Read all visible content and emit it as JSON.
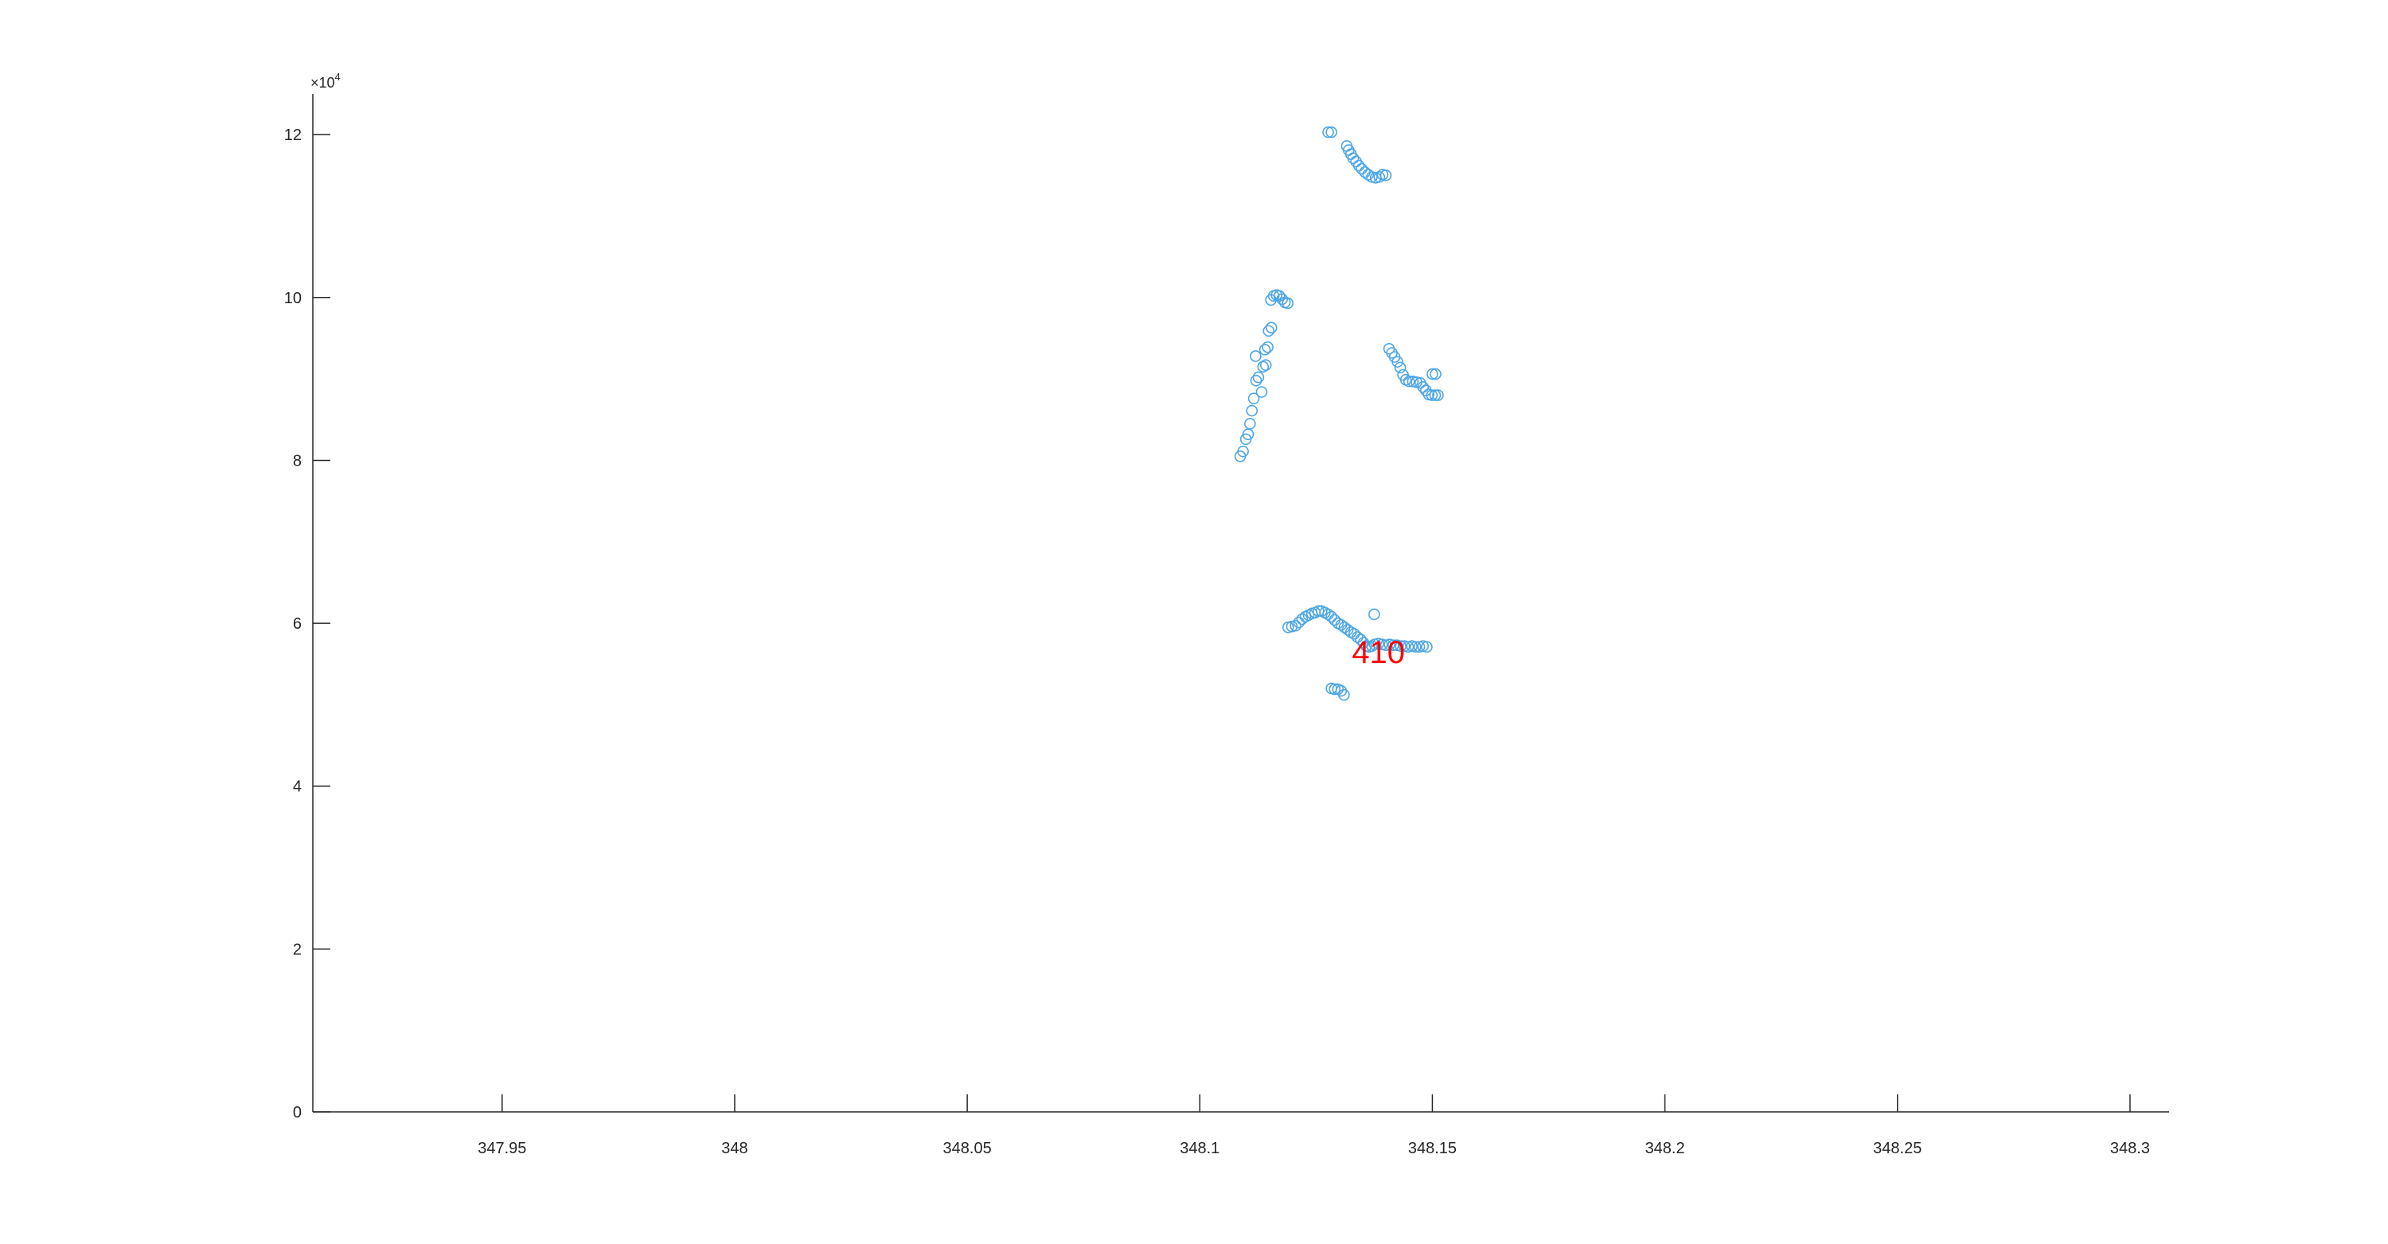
{
  "chart_data": {
    "type": "scatter",
    "xlim": [
      347.9093,
      348.3084
    ],
    "ylim": [
      0,
      125000
    ],
    "x_ticks": [
      347.95,
      348,
      348.05,
      348.1,
      348.15,
      348.2,
      348.25,
      348.3
    ],
    "x_tick_labels": [
      "347.95",
      "348",
      "348.05",
      "348.1",
      "348.15",
      "348.2",
      "348.25",
      "348.3"
    ],
    "y_ticks": [
      0,
      20000,
      40000,
      60000,
      80000,
      100000,
      120000
    ],
    "y_tick_labels": [
      "0",
      "2",
      "4",
      "6",
      "8",
      "10",
      "12"
    ],
    "y_exponent_base": "×10",
    "y_exponent": "4",
    "grid": false,
    "marker": "open-circle",
    "colors": {
      "marker": "#4da6e6",
      "annotation": "#ff0000",
      "axis": "#262626"
    },
    "annotation": {
      "text": "410",
      "x": 348.1368,
      "y": 56500
    },
    "series": [
      {
        "values": [
          [
            348.1276,
            120300
          ],
          [
            348.1283,
            120300
          ],
          [
            348.1316,
            118600
          ],
          [
            348.132,
            118100
          ],
          [
            348.1325,
            117600
          ],
          [
            348.133,
            117100
          ],
          [
            348.1336,
            116700
          ],
          [
            348.1342,
            116200
          ],
          [
            348.1348,
            115800
          ],
          [
            348.1355,
            115400
          ],
          [
            348.1362,
            115100
          ],
          [
            348.137,
            114800
          ],
          [
            348.1378,
            114700
          ],
          [
            348.1386,
            114800
          ],
          [
            348.1393,
            115100
          ],
          [
            348.14,
            115000
          ]
        ]
      },
      {
        "values": [
          [
            348.1087,
            80500
          ],
          [
            348.1093,
            81100
          ],
          [
            348.1099,
            82600
          ],
          [
            348.1104,
            83200
          ],
          [
            348.1108,
            84500
          ],
          [
            348.1112,
            86100
          ],
          [
            348.1116,
            87600
          ],
          [
            348.1121,
            89800
          ],
          [
            348.1126,
            90200
          ],
          [
            348.112,
            92800
          ],
          [
            348.1133,
            88400
          ],
          [
            348.1136,
            91500
          ],
          [
            348.1142,
            91700
          ],
          [
            348.114,
            93600
          ],
          [
            348.1146,
            93900
          ],
          [
            348.1148,
            95900
          ],
          [
            348.1154,
            96300
          ],
          [
            348.1153,
            99700
          ],
          [
            348.1159,
            100200
          ],
          [
            348.1165,
            100300
          ],
          [
            348.1171,
            100200
          ],
          [
            348.1177,
            99800
          ],
          [
            348.1183,
            99400
          ],
          [
            348.1189,
            99300
          ]
        ]
      },
      {
        "values": [
          [
            348.1407,
            93700
          ],
          [
            348.1413,
            93200
          ],
          [
            348.1419,
            92700
          ],
          [
            348.1425,
            92100
          ],
          [
            348.1431,
            91400
          ],
          [
            348.1437,
            90500
          ],
          [
            348.1443,
            89900
          ],
          [
            348.145,
            89700
          ],
          [
            348.1458,
            89700
          ],
          [
            348.1466,
            89600
          ],
          [
            348.1474,
            89500
          ],
          [
            348.148,
            89000
          ],
          [
            348.1486,
            88600
          ],
          [
            348.1492,
            88100
          ],
          [
            348.1499,
            88000
          ],
          [
            348.1506,
            88000
          ],
          [
            348.1512,
            88000
          ],
          [
            348.15,
            90600
          ],
          [
            348.1507,
            90600
          ]
        ]
      },
      {
        "values": [
          [
            348.119,
            59500
          ],
          [
            348.1198,
            59600
          ],
          [
            348.1206,
            59700
          ],
          [
            348.1213,
            60100
          ],
          [
            348.122,
            60500
          ],
          [
            348.1227,
            60800
          ],
          [
            348.1234,
            61000
          ],
          [
            348.1241,
            61200
          ],
          [
            348.1248,
            61300
          ],
          [
            348.1255,
            61500
          ],
          [
            348.1262,
            61500
          ],
          [
            348.1269,
            61300
          ],
          [
            348.1276,
            61100
          ],
          [
            348.1283,
            60800
          ],
          [
            348.129,
            60400
          ],
          [
            348.1297,
            60000
          ],
          [
            348.1304,
            59800
          ],
          [
            348.1311,
            59500
          ],
          [
            348.1318,
            59200
          ],
          [
            348.1325,
            58900
          ],
          [
            348.1332,
            58700
          ],
          [
            348.1339,
            58300
          ],
          [
            348.1346,
            58000
          ],
          [
            348.1352,
            57600
          ],
          [
            348.1358,
            57200
          ],
          [
            348.1364,
            57100
          ],
          [
            348.137,
            57200
          ],
          [
            348.1376,
            57400
          ],
          [
            348.1384,
            57500
          ],
          [
            348.1392,
            57400
          ],
          [
            348.14,
            57300
          ],
          [
            348.1408,
            57400
          ],
          [
            348.1416,
            57300
          ],
          [
            348.1424,
            57300
          ],
          [
            348.1432,
            57200
          ],
          [
            348.144,
            57200
          ],
          [
            348.1448,
            57100
          ],
          [
            348.1456,
            57200
          ],
          [
            348.1464,
            57100
          ],
          [
            348.1472,
            57100
          ],
          [
            348.148,
            57200
          ],
          [
            348.1488,
            57100
          ],
          [
            348.1375,
            61100
          ]
        ]
      },
      {
        "values": [
          [
            348.1283,
            52000
          ],
          [
            348.129,
            51900
          ],
          [
            348.1297,
            51900
          ],
          [
            348.1304,
            51700
          ],
          [
            348.131,
            51200
          ]
        ]
      }
    ]
  }
}
